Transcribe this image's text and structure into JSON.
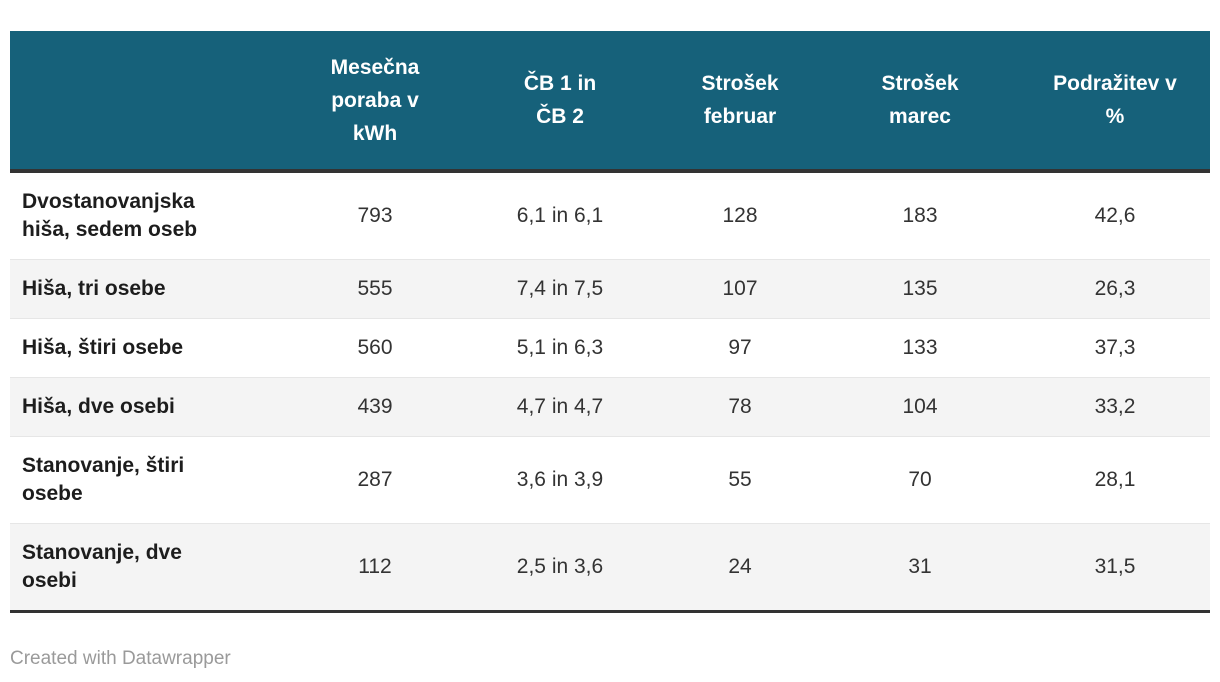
{
  "accent_color": "#16617a",
  "stripe_color": "#f4f4f4",
  "border_color": "#333333",
  "chart_data": {
    "type": "table",
    "columns": [
      "",
      "Mesečna poraba v kWh",
      "ČB 1 in ČB 2",
      "Strošek februar",
      "Strošek marec",
      "Podražitev v %"
    ],
    "rows": [
      {
        "label": "Dvostanovanjska hiša, sedem oseb",
        "values": [
          "793",
          "6,1 in 6,1",
          "128",
          "183",
          "42,6"
        ]
      },
      {
        "label": "Hiša, tri osebe",
        "values": [
          "555",
          "7,4 in 7,5",
          "107",
          "135",
          "26,3"
        ]
      },
      {
        "label": "Hiša, štiri osebe",
        "values": [
          "560",
          "5,1 in 6,3",
          "97",
          "133",
          "37,3"
        ]
      },
      {
        "label": "Hiša, dve osebi",
        "values": [
          "439",
          "4,7 in 4,7",
          "78",
          "104",
          "33,2"
        ]
      },
      {
        "label": "Stanovanje, štiri osebe",
        "values": [
          "287",
          "3,6 in 3,9",
          "55",
          "70",
          "28,1"
        ]
      },
      {
        "label": "Stanovanje, dve osebi",
        "values": [
          "112",
          "2,5 in 3,6",
          "24",
          "31",
          "31,5"
        ]
      }
    ]
  },
  "footer": {
    "credit": "Created with Datawrapper"
  }
}
